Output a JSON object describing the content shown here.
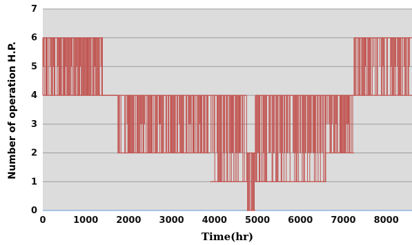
{
  "chart_data": {
    "type": "line",
    "title": "",
    "xlabel": "Time(hr)",
    "ylabel": "Number of operation H.P.",
    "xlim": [
      0,
      8600
    ],
    "ylim": [
      0,
      7
    ],
    "x_ticks": [
      0,
      1000,
      2000,
      3000,
      4000,
      5000,
      6000,
      7000,
      8000
    ],
    "y_ticks": [
      0,
      1,
      2,
      3,
      4,
      5,
      6,
      7
    ],
    "grid": "horizontal",
    "legend": "none",
    "plot_background": "#dcdcdc",
    "gridline_color": "#9a9a9a",
    "series_color": "#c0504d",
    "series": [
      {
        "segments": [
          {
            "x_start": 0,
            "x_end": 400,
            "low": 4,
            "high": 6
          },
          {
            "x_start": 400,
            "x_end": 1400,
            "low": 4,
            "high": 6
          },
          {
            "x_start": 1400,
            "x_end": 1750,
            "low": 4,
            "high": 4
          },
          {
            "x_start": 1750,
            "x_end": 2000,
            "low": 2,
            "high": 4
          },
          {
            "x_start": 2000,
            "x_end": 3000,
            "low": 2,
            "high": 4
          },
          {
            "x_start": 3000,
            "x_end": 3900,
            "low": 2,
            "high": 4
          },
          {
            "x_start": 3900,
            "x_end": 4750,
            "low": 1,
            "high": 4
          },
          {
            "x_start": 4750,
            "x_end": 4950,
            "low": 0,
            "high": 2
          },
          {
            "x_start": 4950,
            "x_end": 5600,
            "low": 1,
            "high": 4
          },
          {
            "x_start": 5600,
            "x_end": 6600,
            "low": 1,
            "high": 4
          },
          {
            "x_start": 6600,
            "x_end": 7250,
            "low": 2,
            "high": 4
          },
          {
            "x_start": 7250,
            "x_end": 8600,
            "low": 4,
            "high": 6
          }
        ]
      }
    ]
  }
}
